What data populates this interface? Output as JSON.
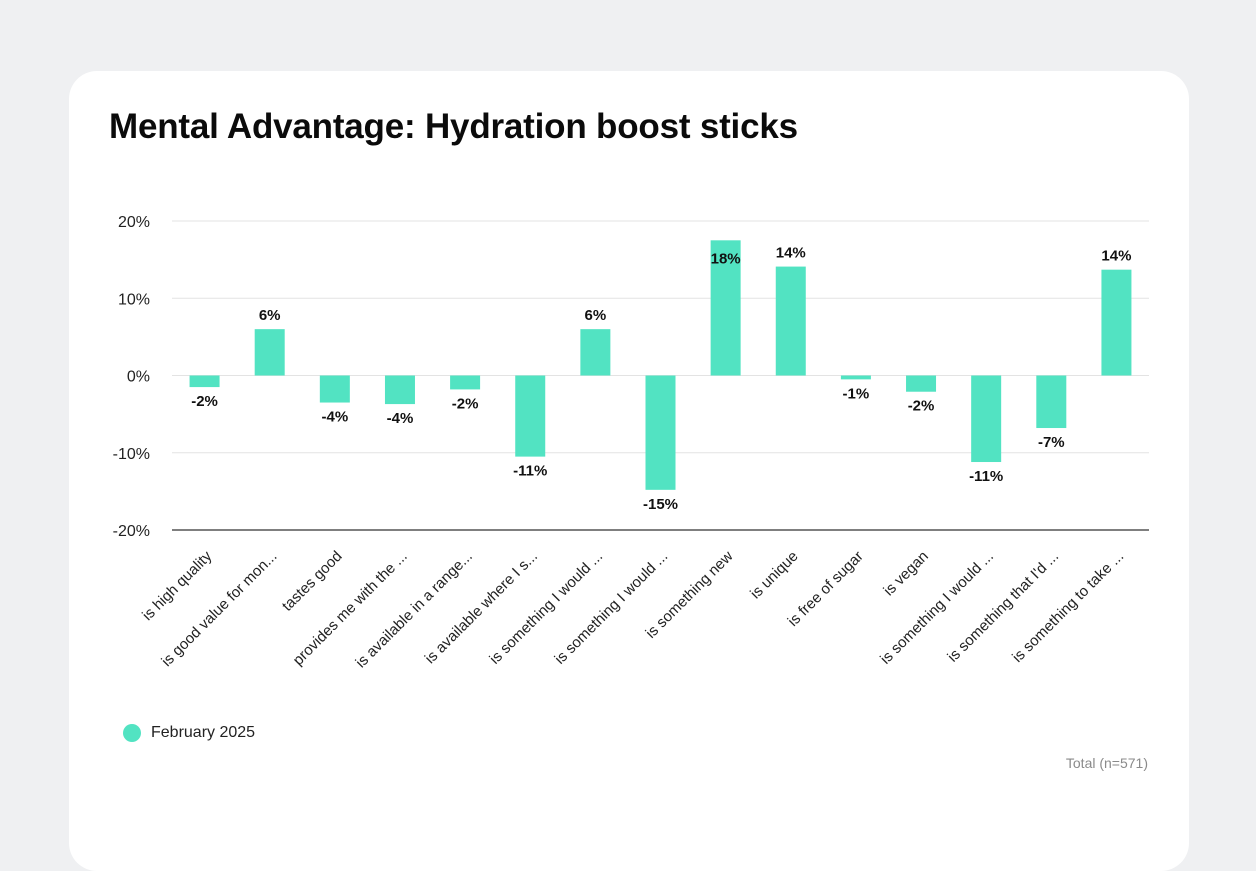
{
  "chart_data": {
    "type": "bar",
    "title": "Mental Advantage: Hydration boost sticks",
    "categories": [
      "is high quality",
      "is good value for mon...",
      "tastes good",
      "provides me with the ...",
      "is available in a range...",
      "is available where I s...",
      "is something I would ...",
      "is something I would ...",
      "is something new",
      "is unique",
      "is free of sugar",
      "is vegan",
      "is something I would ...",
      "is something that I'd ...",
      "is something to take ..."
    ],
    "series": [
      {
        "name": "February 2025",
        "color": "#52e3c2",
        "values": [
          -1.5,
          6,
          -3.5,
          -3.7,
          -1.8,
          -10.5,
          6,
          -14.8,
          17.5,
          14.1,
          -0.5,
          -2.1,
          -11.2,
          -6.8,
          13.7
        ],
        "labels": [
          "-2%",
          "6%",
          "-4%",
          "-4%",
          "-2%",
          "-11%",
          "6%",
          "-15%",
          "18%",
          "14%",
          "-1%",
          "-2%",
          "-11%",
          "-7%",
          "14%"
        ]
      }
    ],
    "yticks": [
      "20%",
      "10%",
      "0%",
      "-10%",
      "-20%"
    ],
    "ylim": [
      -20,
      20
    ],
    "xlabel": "",
    "ylabel": "",
    "grid": true,
    "legend_position": "bottom-left"
  },
  "footer": {
    "total_label": "Total (n=571)"
  }
}
